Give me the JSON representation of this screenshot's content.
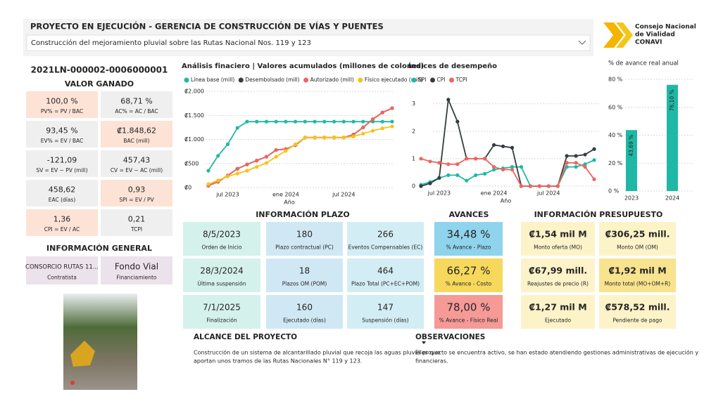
{
  "header": {
    "title": "PROYECTO EN EJECUCIÓN - GERENCIA DE CONSTRUCCIÓN DE VÍAS Y PUENTES",
    "selector": "Construcción del mejoramiento pluvial sobre las Rutas Nacional Nos. 119 y 123"
  },
  "logo": {
    "lines": [
      "Consejo Nacional",
      "de Vialidad",
      "CONAVI"
    ]
  },
  "project_code": "2021LN-000002-0006000001",
  "valor_ganado": {
    "title": "VALOR GANADO",
    "cards": [
      {
        "value": "100,0 %",
        "label": "PV% = PV / BAC"
      },
      {
        "value": "68,71 %",
        "label": "AC% = AC / BAC"
      },
      {
        "value": "93,45 %",
        "label": "EV% = EV / BAC"
      },
      {
        "value": "₡1.848,62",
        "label": "BAC (mill)"
      },
      {
        "value": "-121,09",
        "label": "SV = EV − PV (mill)"
      },
      {
        "value": "457,43",
        "label": "CV = EV − AC (mill)"
      },
      {
        "value": "458,62",
        "label": "EAC (días)"
      },
      {
        "value": "0,93",
        "label": "SPI = EV / PV"
      },
      {
        "value": "1,36",
        "label": "CPI = EV / AC"
      },
      {
        "value": "0,21",
        "label": "TCPI"
      }
    ]
  },
  "informacion_general": {
    "title": "INFORMACIÓN GENERAL",
    "cards": [
      {
        "value": "CONSORCIO RUTAS 11...",
        "label": "Contratista"
      },
      {
        "value": "Fondo Vial",
        "label": "Financiamiento"
      }
    ]
  },
  "informacion_plazo": {
    "title": "INFORMACIÓN PLAZO",
    "cards": [
      {
        "value": "8/5/2023",
        "label": "Orden de Inicio"
      },
      {
        "value": "180",
        "label": "Plazo contractual (PC)"
      },
      {
        "value": "266",
        "label": "Eventos Compensables (EC)"
      },
      {
        "value": "28/3/2024",
        "label": "Última suspensión"
      },
      {
        "value": "18",
        "label": "Plazos OM (POM)"
      },
      {
        "value": "464",
        "label": "Plazo Total (PC+EC+POM)"
      },
      {
        "value": "7/1/2025",
        "label": "Finalización"
      },
      {
        "value": "160",
        "label": "Ejecutado (días)"
      },
      {
        "value": "147",
        "label": "Suspensión (días)"
      }
    ]
  },
  "avances": {
    "title": "AVANCES",
    "cards": [
      {
        "value": "34,48 %",
        "label": "% Avance - Plazo"
      },
      {
        "value": "66,27 %",
        "label": "% Avance - Costo"
      },
      {
        "value": "78,00 %",
        "label": "% Avance - Físico Real"
      }
    ]
  },
  "informacion_presupuesto": {
    "title": "INFORMACIÓN PRESUPUESTO",
    "cards": [
      {
        "value": "₡1,54 mil M",
        "label": "Monto oferta (MO)"
      },
      {
        "value": "₡306,25 mill.",
        "label": "Monto OM (OM)"
      },
      {
        "value": "₡67,99 mill.",
        "label": "Reajustes de precio (R)"
      },
      {
        "value": "₡1,92 mil M",
        "label": "Monto total (MO+OM+R)"
      },
      {
        "value": "₡1,27 mil M",
        "label": "Ejecutado"
      },
      {
        "value": "₡578,52 mill.",
        "label": "Pendiente de pago"
      }
    ]
  },
  "alcance": {
    "title": "ALCANCE DEL PROYECTO",
    "lines": [
      "Construcción de un sistema de alcantarillado pluvial que recoja las aguas pluviales que",
      "aportan unos tramos de las Rutas Nacionales N° 119 y 123."
    ]
  },
  "observaciones": {
    "title": "OBSERVACIONES",
    "lines": [
      "El proyecto se encuentra activo, se han estado atendiendo gestiones administrativas de ejecución y",
      "financieras."
    ]
  },
  "chart_data": [
    {
      "type": "line",
      "title": "Análisis finaciero | Valores acumulados (millones de colones)",
      "xlabel": "Año",
      "categories": [
        null,
        null,
        "jul 2023",
        null,
        null,
        null,
        null,
        null,
        "ene 2024",
        null,
        null,
        null,
        null,
        null,
        "jul 2024",
        null,
        null,
        null,
        null,
        null
      ],
      "series": [
        {
          "name": "Línea base (mill)",
          "color": "#1fb8a6",
          "values": [
            350,
            660,
            900,
            1240,
            1370,
            1370,
            1370,
            1370,
            1370,
            1370,
            1370,
            1370,
            1370,
            1370,
            1370,
            1370,
            1370,
            1370,
            1370,
            1370
          ]
        },
        {
          "name": "Desembolsado (mill)",
          "color": "#333d3f",
          "values": [
            40,
            120,
            250,
            390,
            480,
            560,
            640,
            780,
            800,
            880,
            1040,
            1040,
            1040,
            1040,
            1040,
            1100,
            1250,
            1420,
            1560,
            1650
          ]
        },
        {
          "name": "Autorizado (mill)",
          "color": "#f0645f",
          "values": [
            40,
            120,
            250,
            390,
            480,
            560,
            640,
            780,
            800,
            880,
            1040,
            1040,
            1040,
            1040,
            1040,
            1100,
            1250,
            1420,
            1560,
            1650
          ]
        },
        {
          "name": "Físico ejecutado (mill)",
          "color": "#f5c518",
          "values": [
            70,
            150,
            230,
            290,
            350,
            430,
            510,
            640,
            760,
            900,
            1040,
            1040,
            1040,
            1040,
            1040,
            1060,
            1120,
            1180,
            1230,
            1270
          ]
        }
      ],
      "ylim": [
        0,
        2000
      ],
      "yticks": [
        {
          "value": 0,
          "label": "₡0"
        },
        {
          "value": 500,
          "label": "₡500"
        },
        {
          "value": 1000,
          "label": "₡1.000"
        },
        {
          "value": 1500,
          "label": "₡1.500"
        },
        {
          "value": 2000,
          "label": "₡2.000"
        }
      ],
      "grid": true
    },
    {
      "type": "line",
      "title": "Índices de desempeño",
      "xlabel": "Año",
      "categories": [
        null,
        null,
        "jul 2023",
        null,
        null,
        null,
        null,
        null,
        "ene 2024",
        null,
        null,
        null,
        null,
        null,
        "jul 2024",
        null,
        null,
        null,
        null,
        null
      ],
      "series": [
        {
          "name": "SPI",
          "color": "#1fb8a6",
          "values": [
            0.05,
            0.15,
            0.3,
            0.4,
            0.4,
            0.2,
            0.4,
            0.45,
            0.6,
            0.65,
            0.7,
            0.7,
            0,
            0,
            0,
            0,
            0.7,
            0.7,
            0.8,
            0.95
          ]
        },
        {
          "name": "CPI",
          "color": "#333d3f",
          "values": [
            0,
            0.1,
            0.3,
            3.15,
            2.35,
            1,
            1,
            1,
            1.5,
            1.45,
            1.4,
            0,
            0,
            0,
            0,
            0,
            1.1,
            1.1,
            1.15,
            1.35
          ]
        },
        {
          "name": "TCPI",
          "color": "#f0645f",
          "values": [
            1,
            0.9,
            0.85,
            0.8,
            0.8,
            1,
            1,
            1,
            0.7,
            0.6,
            0.6,
            0,
            0,
            0,
            0,
            0,
            0.85,
            0.85,
            0.7,
            0.25
          ]
        }
      ],
      "ylim": [
        0,
        3.3
      ],
      "yticks": [
        0,
        1,
        2,
        3
      ],
      "grid": true
    },
    {
      "type": "bar",
      "title": "% de avance real anual",
      "categories": [
        "2023",
        "2024"
      ],
      "values": [
        43.69,
        76.1
      ],
      "value_labels": [
        "43,69 %",
        "76,10 %"
      ],
      "color": "#1fb8a6",
      "ylim": [
        0,
        80
      ],
      "yticks": [
        {
          "value": 0,
          "label": "0 %"
        },
        {
          "value": 20,
          "label": "20 %"
        },
        {
          "value": 40,
          "label": "40 %"
        },
        {
          "value": 60,
          "label": "60 %"
        },
        {
          "value": 80,
          "label": "80 %"
        }
      ],
      "grid": true
    }
  ]
}
